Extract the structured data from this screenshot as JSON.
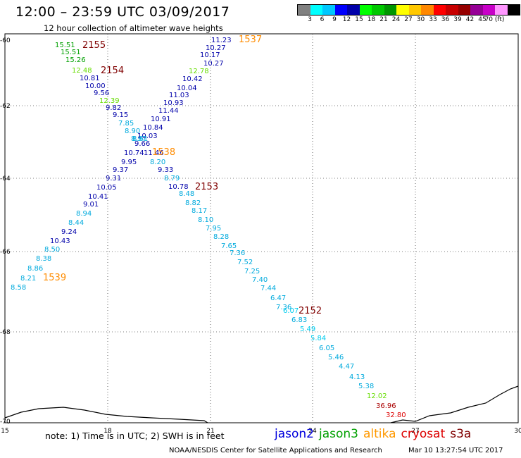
{
  "header": {
    "title": "12:00 – 23:59 UTC 03/09/2017",
    "subtitle": "12 hour collection of altimeter wave heights"
  },
  "colorbar": {
    "colors": [
      "#808080",
      "#00ffff",
      "#00c8ff",
      "#0000ff",
      "#0000aa",
      "#00ff00",
      "#00c800",
      "#009600",
      "#ffff00",
      "#ffc800",
      "#ff8800",
      "#ff0000",
      "#c80000",
      "#960000",
      "#960096",
      "#c800c8",
      "#ff96ff",
      "#000000"
    ],
    "labels": [
      "3",
      "6",
      "9",
      "12",
      "15",
      "18",
      "21",
      "24",
      "27",
      "30",
      "33",
      "36",
      "39",
      "42",
      "45",
      "70 (ft)"
    ]
  },
  "map": {
    "x_ticks": [
      "15",
      "18",
      "21",
      "24",
      "27",
      "30"
    ],
    "y_ticks": [
      "-60",
      "-62",
      "-64",
      "-66",
      "-68",
      "-70"
    ],
    "pass_times": [
      {
        "label": "2155",
        "color": "#800000"
      },
      {
        "label": "2154",
        "color": "#800000"
      },
      {
        "label": "1537",
        "color": "#ff8c00"
      },
      {
        "label": "1538",
        "color": "#ff8c00"
      },
      {
        "label": "2153",
        "color": "#800000"
      },
      {
        "label": "1539",
        "color": "#ff8c00"
      },
      {
        "label": "2152",
        "color": "#800000"
      }
    ],
    "track_a": [
      {
        "v": "15.51",
        "c": "#00a000"
      },
      {
        "v": "15.51",
        "c": "#00a000"
      },
      {
        "v": "15.26",
        "c": "#00a000"
      },
      {
        "v": "12.48",
        "c": "#66dd00"
      },
      {
        "v": "10.81",
        "c": "#0000aa"
      },
      {
        "v": "10.00",
        "c": "#0000aa"
      },
      {
        "v": "9.56",
        "c": "#0000aa"
      },
      {
        "v": "12.39",
        "c": "#66dd00"
      },
      {
        "v": "9.82",
        "c": "#0000aa"
      },
      {
        "v": "9.15",
        "c": "#0000aa"
      },
      {
        "v": "7.85",
        "c": "#00aadd"
      },
      {
        "v": "8.90",
        "c": "#00aadd"
      },
      {
        "v": "8.97",
        "c": "#00aadd"
      },
      {
        "v": "9.66",
        "c": "#0000aa"
      },
      {
        "v": "11.46",
        "c": "#0000aa"
      },
      {
        "v": "8.20",
        "c": "#00aadd"
      },
      {
        "v": "9.33",
        "c": "#0000aa"
      },
      {
        "v": "8.79",
        "c": "#00aadd"
      },
      {
        "v": "10.78",
        "c": "#0000aa"
      },
      {
        "v": "8.48",
        "c": "#00aadd"
      },
      {
        "v": "8.82",
        "c": "#00aadd"
      },
      {
        "v": "8.17",
        "c": "#00aadd"
      },
      {
        "v": "8.10",
        "c": "#00aadd"
      },
      {
        "v": "7.95",
        "c": "#00aadd"
      },
      {
        "v": "8.28",
        "c": "#00aadd"
      },
      {
        "v": "7.65",
        "c": "#00aadd"
      },
      {
        "v": "7.36",
        "c": "#00aadd"
      },
      {
        "v": "7.52",
        "c": "#00aadd"
      },
      {
        "v": "7.25",
        "c": "#00aadd"
      },
      {
        "v": "7.40",
        "c": "#00aadd"
      },
      {
        "v": "7.44",
        "c": "#00aadd"
      },
      {
        "v": "6.47",
        "c": "#00aadd"
      },
      {
        "v": "7.36",
        "c": "#00aadd"
      },
      {
        "v": "6.07",
        "c": "#00ccee"
      },
      {
        "v": "6.83",
        "c": "#00aadd"
      },
      {
        "v": "5.49",
        "c": "#00ccee"
      },
      {
        "v": "5.84",
        "c": "#00ccee"
      },
      {
        "v": "6.05",
        "c": "#00aadd"
      },
      {
        "v": "5.46",
        "c": "#00aadd"
      },
      {
        "v": "4.47",
        "c": "#00aadd"
      },
      {
        "v": "4.13",
        "c": "#00aadd"
      },
      {
        "v": "5.38",
        "c": "#00aadd"
      },
      {
        "v": "12.02",
        "c": "#66dd00"
      },
      {
        "v": "36.96",
        "c": "#aa0000"
      },
      {
        "v": "32.80",
        "c": "#dd0000"
      }
    ],
    "track_b": [
      {
        "v": "11.23",
        "c": "#0000aa"
      },
      {
        "v": "10.27",
        "c": "#0000aa"
      },
      {
        "v": "10.17",
        "c": "#0000aa"
      },
      {
        "v": "10.27",
        "c": "#0000aa"
      },
      {
        "v": "12.78",
        "c": "#66dd00"
      },
      {
        "v": "10.42",
        "c": "#0000aa"
      },
      {
        "v": "10.04",
        "c": "#0000aa"
      },
      {
        "v": "11.03",
        "c": "#0000aa"
      },
      {
        "v": "10.93",
        "c": "#0000aa"
      },
      {
        "v": "11.44",
        "c": "#0000aa"
      },
      {
        "v": "10.91",
        "c": "#0000aa"
      },
      {
        "v": "10.84",
        "c": "#0000aa"
      },
      {
        "v": "10.03",
        "c": "#0000aa"
      },
      {
        "v": "8.61",
        "c": "#00aadd"
      },
      {
        "v": "10.74",
        "c": "#0000aa"
      },
      {
        "v": "9.95",
        "c": "#0000aa"
      },
      {
        "v": "9.37",
        "c": "#0000aa"
      },
      {
        "v": "9.31",
        "c": "#0000aa"
      },
      {
        "v": "10.05",
        "c": "#0000aa"
      },
      {
        "v": "10.41",
        "c": "#0000aa"
      },
      {
        "v": "9.01",
        "c": "#0000aa"
      },
      {
        "v": "8.94",
        "c": "#00aadd"
      },
      {
        "v": "8.44",
        "c": "#00aadd"
      },
      {
        "v": "9.24",
        "c": "#0000aa"
      },
      {
        "v": "10.43",
        "c": "#0000aa"
      },
      {
        "v": "8.50",
        "c": "#00aadd"
      },
      {
        "v": "8.38",
        "c": "#00aadd"
      },
      {
        "v": "8.86",
        "c": "#00aadd"
      },
      {
        "v": "8.21",
        "c": "#00aadd"
      },
      {
        "v": "8.58",
        "c": "#00aadd"
      }
    ]
  },
  "footer": {
    "note": "note: 1) Time is in UTC; 2) SWH is in feet",
    "legend": [
      {
        "name": "jason2",
        "color": "#0000dd"
      },
      {
        "name": "jason3",
        "color": "#00a000"
      },
      {
        "name": "altika",
        "color": "#ff9900"
      },
      {
        "name": "cryosat",
        "color": "#dd0000"
      },
      {
        "name": "s3a",
        "color": "#800000"
      }
    ],
    "credit": "NOAA/NESDIS Center for Satellite Applications and Research",
    "timestamp": "Mar 10 13:27:54 UTC 2017"
  }
}
